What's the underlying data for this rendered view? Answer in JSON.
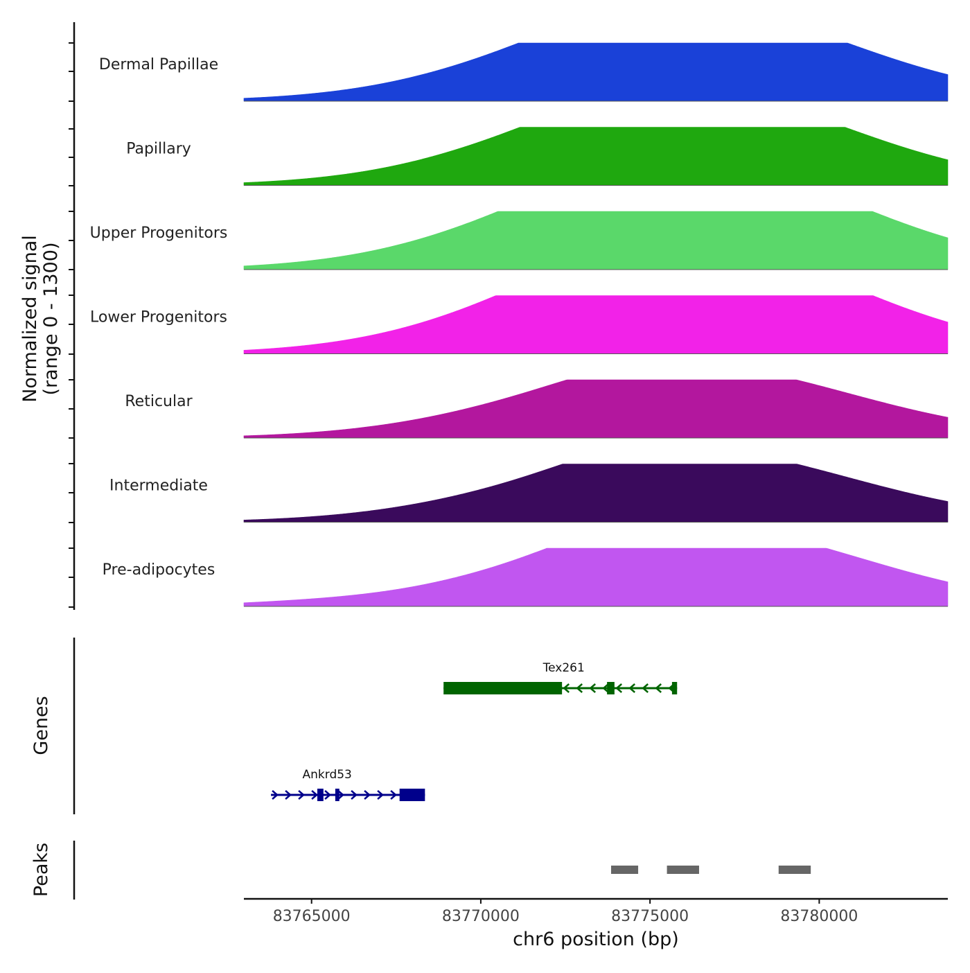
{
  "chart_data": {
    "type": "area",
    "title": "",
    "ylabel_line1": "Normalized signal",
    "ylabel_line2": "(range 0 - 1300)",
    "y_range": [
      0,
      1300
    ],
    "xlabel": "chr6 position (bp)",
    "xlim": [
      83763000,
      83783800
    ],
    "x_ticks": [
      83765000,
      83770000,
      83775000,
      83780000
    ],
    "x_tick_labels": [
      "83765000",
      "83770000",
      "83775000",
      "83780000"
    ],
    "tracks": [
      {
        "name": "Dermal Papillae",
        "color": "#1a41d8"
      },
      {
        "name": "Papillary",
        "color": "#1fa80f"
      },
      {
        "name": "Upper Progenitors",
        "color": "#5ad86a"
      },
      {
        "name": "Lower Progenitors",
        "color": "#f222e8"
      },
      {
        "name": "Reticular",
        "color": "#b3179e"
      },
      {
        "name": "Intermediate",
        "color": "#3a0a5c"
      },
      {
        "name": "Pre-adipocytes",
        "color": "#c156f0"
      }
    ],
    "profiles": [
      {
        "base": 8,
        "peaks": [
          [
            83774400,
            1.0,
            0.00025
          ],
          [
            83774800,
            0.5,
            0.0002
          ],
          [
            83775150,
            1.0,
            0.00012
          ],
          [
            83775400,
            0.8,
            0.0001
          ],
          [
            83775850,
            19,
            0.0001
          ],
          [
            83776250,
            11,
            8e-05
          ],
          [
            83779250,
            0.8,
            0.00012
          ]
        ]
      },
      {
        "base": 8,
        "peaks": [
          [
            83774400,
            1.2,
            0.00025
          ],
          [
            83775150,
            1.5,
            0.0001
          ],
          [
            83775450,
            2.0,
            0.0001
          ],
          [
            83775850,
            19,
            0.0001
          ],
          [
            83776250,
            9,
            8e-05
          ],
          [
            83779250,
            1.0,
            0.00012
          ]
        ]
      },
      {
        "base": 8,
        "peaks": [
          [
            83774400,
            1.0,
            0.00025
          ],
          [
            83775150,
            1.0,
            0.0001
          ],
          [
            83775500,
            2.2,
            0.0001
          ],
          [
            83775850,
            19,
            0.0001
          ],
          [
            83776250,
            14,
            8e-05
          ],
          [
            83779250,
            1.2,
            0.00012
          ]
        ]
      },
      {
        "base": 8,
        "peaks": [
          [
            83774400,
            1.0,
            0.00025
          ],
          [
            83775200,
            2.2,
            0.00012
          ],
          [
            83775500,
            2.0,
            0.0001
          ],
          [
            83775850,
            19,
            0.0001
          ],
          [
            83776250,
            14,
            8e-05
          ],
          [
            83779250,
            1.2,
            0.00012
          ]
        ]
      },
      {
        "base": 8,
        "peaks": [
          [
            83774400,
            1.4,
            0.00025
          ],
          [
            83774900,
            0.5,
            0.0002
          ],
          [
            83775250,
            0.8,
            0.0001
          ],
          [
            83775500,
            1.4,
            0.0001
          ],
          [
            83775850,
            13,
            0.0001
          ],
          [
            83776250,
            8,
            8e-05
          ],
          [
            83779250,
            1.4,
            0.00012
          ]
        ]
      },
      {
        "base": 8,
        "peaks": [
          [
            83774400,
            2.3,
            0.00025
          ],
          [
            83775000,
            0.7,
            0.0002
          ],
          [
            83775300,
            0.8,
            0.0001
          ],
          [
            83775500,
            1.2,
            0.0001
          ],
          [
            83775850,
            13,
            0.0001
          ],
          [
            83776250,
            8,
            8e-05
          ],
          [
            83779250,
            1.5,
            0.00012
          ]
        ]
      },
      {
        "base": 8,
        "peaks": [
          [
            83764200,
            0.3,
            0.0002
          ],
          [
            83765000,
            0.3,
            0.0002
          ],
          [
            83774400,
            2.2,
            0.00025
          ],
          [
            83775000,
            1.5,
            0.0002
          ],
          [
            83775500,
            1.9,
            0.0001
          ],
          [
            83775850,
            15,
            0.0001
          ],
          [
            83776250,
            8,
            8e-05
          ],
          [
            83779250,
            1.7,
            0.00012
          ],
          [
            83779500,
            0.8,
            0.0001
          ],
          [
            83781300,
            0.2,
            0.0002
          ],
          [
            83782200,
            0.2,
            0.0002
          ]
        ]
      }
    ],
    "genes": [
      {
        "name": "Tex261",
        "strand": "-",
        "color": "#006400",
        "start": 83768900,
        "end": 83775800,
        "exons": [
          [
            83768900,
            83772400
          ],
          [
            83773730,
            83773950
          ],
          [
            83775650,
            83775800
          ]
        ]
      },
      {
        "name": "Ankrd53",
        "strand": "+",
        "color": "#00008b",
        "start": 83763800,
        "end": 83768350,
        "exons": [
          [
            83765170,
            83765350
          ],
          [
            83765700,
            83765820
          ],
          [
            83767600,
            83768350
          ]
        ]
      }
    ],
    "peaks": [
      [
        83773850,
        83774650
      ],
      [
        83775500,
        83776450
      ],
      [
        83778800,
        83779750
      ]
    ],
    "panel_titles": {
      "genes": "Genes",
      "peaks": "Peaks"
    }
  }
}
